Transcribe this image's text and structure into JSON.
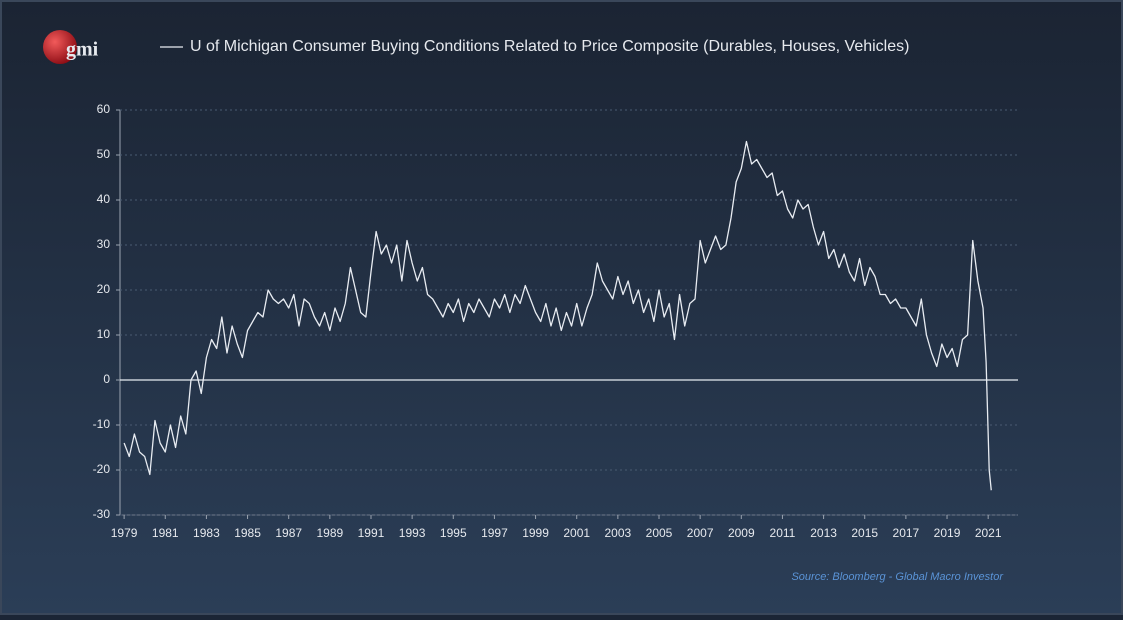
{
  "logo": "gmi",
  "chart_data": {
    "type": "line",
    "source": "Source: Bloomberg - Global Macro Investor",
    "x": [
      1979,
      1979.25,
      1979.5,
      1979.75,
      1980,
      1980.25,
      1980.5,
      1980.75,
      1981,
      1981.25,
      1981.5,
      1981.75,
      1982,
      1982.25,
      1982.5,
      1982.75,
      1983,
      1983.25,
      1983.5,
      1983.75,
      1984,
      1984.25,
      1984.5,
      1984.75,
      1985,
      1985.25,
      1985.5,
      1985.75,
      1986,
      1986.25,
      1986.5,
      1986.75,
      1987,
      1987.25,
      1987.5,
      1987.75,
      1988,
      1988.25,
      1988.5,
      1988.75,
      1989,
      1989.25,
      1989.5,
      1989.75,
      1990,
      1990.25,
      1990.5,
      1990.75,
      1991,
      1991.25,
      1991.5,
      1991.75,
      1992,
      1992.25,
      1992.5,
      1992.75,
      1993,
      1993.25,
      1993.5,
      1993.75,
      1994,
      1994.25,
      1994.5,
      1994.75,
      1995,
      1995.25,
      1995.5,
      1995.75,
      1996,
      1996.25,
      1996.5,
      1996.75,
      1997,
      1997.25,
      1997.5,
      1997.75,
      1998,
      1998.25,
      1998.5,
      1998.75,
      1999,
      1999.25,
      1999.5,
      1999.75,
      2000,
      2000.25,
      2000.5,
      2000.75,
      2001,
      2001.25,
      2001.5,
      2001.75,
      2002,
      2002.25,
      2002.5,
      2002.75,
      2003,
      2003.25,
      2003.5,
      2003.75,
      2004,
      2004.25,
      2004.5,
      2004.75,
      2005,
      2005.25,
      2005.5,
      2005.75,
      2006,
      2006.25,
      2006.5,
      2006.75,
      2007,
      2007.25,
      2007.5,
      2007.75,
      2008,
      2008.25,
      2008.5,
      2008.75,
      2009,
      2009.25,
      2009.5,
      2009.75,
      2010,
      2010.25,
      2010.5,
      2010.75,
      2011,
      2011.25,
      2011.5,
      2011.75,
      2012,
      2012.25,
      2012.5,
      2012.75,
      2013,
      2013.25,
      2013.5,
      2013.75,
      2014,
      2014.25,
      2014.5,
      2014.75,
      2015,
      2015.25,
      2015.5,
      2015.75,
      2016,
      2016.25,
      2016.5,
      2016.75,
      2017,
      2017.25,
      2017.5,
      2017.75,
      2018,
      2018.25,
      2018.5,
      2018.75,
      2019,
      2019.25,
      2019.5,
      2019.75,
      2020,
      2020.25,
      2020.5,
      2020.75,
      2020.9,
      2021.05,
      2021.15
    ],
    "series": [
      {
        "name": "U of Michigan Consumer Buying Conditions Related to Price Composite (Durables, Houses, Vehicles)",
        "color": "#e8ecf2",
        "values": [
          -14,
          -17,
          -12,
          -16,
          -17,
          -21,
          -9,
          -14,
          -16,
          -10,
          -15,
          -8,
          -12,
          0,
          2,
          -3,
          5,
          9,
          7,
          14,
          6,
          12,
          8,
          5,
          11,
          13,
          15,
          14,
          20,
          18,
          17,
          18,
          16,
          19,
          12,
          18,
          17,
          14,
          12,
          15,
          11,
          16,
          13,
          17,
          25,
          20,
          15,
          14,
          24,
          33,
          28,
          30,
          26,
          30,
          22,
          31,
          26,
          22,
          25,
          19,
          18,
          16,
          14,
          17,
          15,
          18,
          13,
          17,
          15,
          18,
          16,
          14,
          18,
          16,
          19,
          15,
          19,
          17,
          21,
          18,
          15,
          13,
          17,
          12,
          16,
          11,
          15,
          12,
          17,
          12,
          16,
          19,
          26,
          22,
          20,
          18,
          23,
          19,
          22,
          17,
          20,
          15,
          18,
          13,
          20,
          14,
          17,
          9,
          19,
          12,
          17,
          18,
          31,
          26,
          29,
          32,
          29,
          30,
          36,
          44,
          47,
          53,
          48,
          49,
          47,
          45,
          46,
          41,
          42,
          38,
          36,
          40,
          38,
          39,
          34,
          30,
          33,
          27,
          29,
          25,
          28,
          24,
          22,
          27,
          21,
          25,
          23,
          19,
          19,
          17,
          18,
          16,
          16,
          14,
          12,
          18,
          10,
          6,
          3,
          8,
          5,
          7,
          3,
          9,
          10,
          31,
          22,
          16,
          4,
          -20,
          -24.5
        ]
      }
    ],
    "xlim": [
      1978.8,
      2022.45
    ],
    "xticks": [
      1979,
      1981,
      1983,
      1985,
      1987,
      1989,
      1991,
      1993,
      1995,
      1997,
      1999,
      2001,
      2003,
      2005,
      2007,
      2009,
      2011,
      2013,
      2015,
      2017,
      2019,
      2021
    ],
    "ylim": [
      -30,
      60
    ],
    "yticks": [
      -30,
      -20,
      -10,
      0,
      10,
      20,
      30,
      40,
      50,
      60
    ],
    "grid": true
  }
}
